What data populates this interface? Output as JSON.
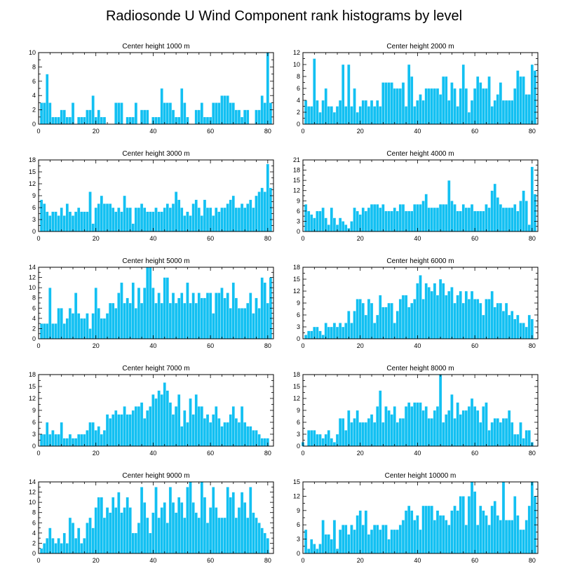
{
  "title": "Radiosonde U Wind Component rank histograms by level",
  "colors": {
    "bar": "#12c0f2",
    "bar_edge": "#ffffff",
    "axis": "#000000"
  },
  "chart_data": [
    {
      "type": "bar",
      "title": "Center height 1000 m",
      "xlim": [
        0,
        82
      ],
      "ylim": [
        0,
        10
      ],
      "yticks": [
        0,
        2,
        4,
        6,
        8,
        10
      ],
      "xticks": [
        0,
        20,
        40,
        60,
        80
      ],
      "values": [
        0,
        3,
        3,
        7,
        3,
        1,
        1,
        1,
        2,
        2,
        1,
        1,
        3,
        0,
        1,
        1,
        1,
        2,
        2,
        4,
        1,
        2,
        1,
        1,
        0,
        0,
        0,
        3,
        3,
        3,
        0,
        1,
        1,
        1,
        3,
        0,
        2,
        2,
        2,
        0,
        1,
        1,
        1,
        5,
        3,
        3,
        3,
        2,
        1,
        1,
        5,
        3,
        1,
        0,
        0,
        2,
        2,
        3,
        1,
        1,
        1,
        3,
        3,
        3,
        4,
        4,
        4,
        3,
        3,
        2,
        2,
        1,
        2,
        2,
        0,
        0,
        2,
        2,
        4,
        3,
        10,
        3
      ]
    },
    {
      "type": "bar",
      "title": "Center height 2000 m",
      "xlim": [
        0,
        82
      ],
      "ylim": [
        0,
        12
      ],
      "yticks": [
        0,
        2,
        4,
        6,
        8,
        10,
        12
      ],
      "xticks": [
        0,
        20,
        40,
        60,
        80
      ],
      "values": [
        0,
        4,
        3,
        3,
        11,
        4,
        2,
        4,
        6,
        3,
        3,
        2,
        3,
        4,
        10,
        3,
        10,
        3,
        6,
        2,
        3,
        4,
        4,
        3,
        4,
        3,
        4,
        3,
        7,
        7,
        7,
        7,
        6,
        6,
        6,
        7,
        3,
        10,
        8,
        3,
        4,
        5,
        4,
        6,
        6,
        6,
        6,
        6,
        5,
        8,
        8,
        4,
        7,
        6,
        3,
        6,
        10,
        6,
        2,
        4,
        6,
        8,
        7,
        6,
        6,
        8,
        3,
        4,
        5,
        7,
        4,
        4,
        4,
        4,
        6,
        9,
        8,
        8,
        5,
        5,
        10,
        9
      ]
    },
    {
      "type": "bar",
      "title": "Center height 3000 m",
      "xlim": [
        0,
        82
      ],
      "ylim": [
        0,
        18
      ],
      "yticks": [
        0,
        3,
        6,
        9,
        12,
        15,
        18
      ],
      "xticks": [
        0,
        20,
        40,
        60,
        80
      ],
      "values": [
        0,
        8,
        7,
        5,
        4,
        5,
        5,
        4,
        6,
        4,
        7,
        5,
        4,
        5,
        6,
        5,
        5,
        5,
        10,
        2,
        6,
        7,
        9,
        7,
        7,
        7,
        6,
        5,
        6,
        5,
        9,
        6,
        6,
        2,
        6,
        6,
        7,
        6,
        5,
        5,
        5,
        6,
        5,
        5,
        6,
        7,
        6,
        7,
        10,
        8,
        6,
        4,
        5,
        4,
        7,
        8,
        6,
        4,
        8,
        6,
        6,
        4,
        6,
        5,
        6,
        6,
        7,
        8,
        9,
        6,
        6,
        7,
        6,
        7,
        8,
        6,
        9,
        10,
        11,
        10,
        17,
        11
      ]
    },
    {
      "type": "bar",
      "title": "Center height 4000 m",
      "xlim": [
        0,
        82
      ],
      "ylim": [
        0,
        21
      ],
      "yticks": [
        0,
        3,
        6,
        9,
        12,
        15,
        18,
        21
      ],
      "xticks": [
        0,
        20,
        40,
        60,
        80
      ],
      "values": [
        0,
        8,
        6,
        5,
        4,
        6,
        6,
        7,
        4,
        2,
        7,
        4,
        2,
        4,
        3,
        2,
        1,
        3,
        7,
        6,
        5,
        7,
        6,
        7,
        8,
        8,
        8,
        7,
        8,
        6,
        6,
        6,
        7,
        6,
        8,
        8,
        6,
        6,
        6,
        8,
        8,
        8,
        9,
        11,
        7,
        7,
        7,
        7,
        8,
        8,
        8,
        15,
        9,
        8,
        6,
        6,
        8,
        7,
        7,
        8,
        6,
        6,
        6,
        6,
        8,
        7,
        12,
        14,
        10,
        8,
        7,
        7,
        7,
        7,
        8,
        6,
        9,
        12,
        9,
        2,
        19,
        11
      ]
    },
    {
      "type": "bar",
      "title": "Center height 5000 m",
      "xlim": [
        0,
        82
      ],
      "ylim": [
        0,
        14
      ],
      "yticks": [
        0,
        2,
        4,
        6,
        8,
        10,
        12,
        14
      ],
      "xticks": [
        0,
        20,
        40,
        60,
        80
      ],
      "values": [
        0,
        3,
        3,
        3,
        10,
        3,
        3,
        6,
        6,
        3,
        4,
        6,
        5,
        9,
        5,
        4,
        4,
        5,
        2,
        5,
        10,
        6,
        4,
        4,
        5,
        7,
        7,
        6,
        9,
        11,
        7,
        8,
        7,
        11,
        6,
        10,
        7,
        10,
        14,
        14,
        10,
        7,
        9,
        7,
        12,
        12,
        7,
        9,
        7,
        8,
        9,
        7,
        11,
        7,
        9,
        7,
        9,
        8,
        8,
        9,
        9,
        5,
        9,
        9,
        10,
        8,
        9,
        6,
        11,
        8,
        6,
        6,
        6,
        7,
        9,
        5,
        8,
        6,
        12,
        11,
        7,
        12
      ]
    },
    {
      "type": "bar",
      "title": "Center height 6000 m",
      "xlim": [
        0,
        82
      ],
      "ylim": [
        0,
        18
      ],
      "yticks": [
        0,
        3,
        6,
        9,
        12,
        15,
        18
      ],
      "xticks": [
        0,
        20,
        40,
        60,
        80
      ],
      "values": [
        0,
        1,
        2,
        2,
        3,
        3,
        2,
        1,
        4,
        3,
        3,
        4,
        3,
        4,
        3,
        4,
        7,
        4,
        7,
        10,
        10,
        9,
        6,
        10,
        9,
        4,
        6,
        11,
        8,
        8,
        9,
        9,
        4,
        7,
        10,
        11,
        11,
        8,
        9,
        10,
        14,
        16,
        10,
        14,
        13,
        12,
        14,
        11,
        15,
        14,
        11,
        12,
        13,
        9,
        11,
        12,
        9,
        12,
        10,
        12,
        10,
        10,
        9,
        6,
        10,
        10,
        12,
        8,
        9,
        9,
        7,
        9,
        6,
        7,
        5,
        6,
        4,
        4,
        3,
        6,
        5
      ]
    },
    {
      "type": "bar",
      "title": "Center height 7000 m",
      "xlim": [
        0,
        82
      ],
      "ylim": [
        0,
        18
      ],
      "yticks": [
        0,
        3,
        6,
        9,
        12,
        15,
        18
      ],
      "xticks": [
        0,
        20,
        40,
        60,
        80
      ],
      "values": [
        0,
        3,
        3,
        6,
        3,
        4,
        3,
        3,
        6,
        2,
        2,
        3,
        2,
        2,
        3,
        3,
        3,
        4,
        6,
        6,
        4,
        5,
        3,
        4,
        8,
        7,
        8,
        9,
        8,
        8,
        10,
        8,
        8,
        9,
        10,
        10,
        11,
        7,
        9,
        10,
        13,
        12,
        14,
        13,
        16,
        14,
        11,
        8,
        10,
        13,
        5,
        9,
        6,
        12,
        8,
        13,
        10,
        10,
        7,
        8,
        6,
        8,
        10,
        7,
        5,
        6,
        6,
        8,
        10,
        7,
        6,
        10,
        6,
        5,
        5,
        4,
        4,
        3,
        2,
        2,
        2
      ]
    },
    {
      "type": "bar",
      "title": "Center height 8000 m",
      "xlim": [
        0,
        82
      ],
      "ylim": [
        0,
        18
      ],
      "yticks": [
        0,
        3,
        6,
        9,
        12,
        15,
        18
      ],
      "xticks": [
        0,
        20,
        40,
        60,
        80
      ],
      "values": [
        1,
        0,
        4,
        4,
        4,
        3,
        3,
        2,
        3,
        4,
        2,
        1,
        3,
        7,
        7,
        4,
        9,
        6,
        7,
        9,
        6,
        6,
        6,
        7,
        8,
        6,
        10,
        14,
        6,
        10,
        9,
        8,
        10,
        6,
        7,
        7,
        10,
        11,
        10,
        11,
        11,
        11,
        9,
        10,
        7,
        7,
        9,
        10,
        18,
        6,
        8,
        9,
        13,
        7,
        11,
        8,
        9,
        9,
        10,
        12,
        10,
        9,
        6,
        10,
        11,
        4,
        6,
        7,
        7,
        6,
        7,
        7,
        9,
        6,
        3,
        3,
        6,
        2,
        4,
        4,
        1
      ]
    },
    {
      "type": "bar",
      "title": "Center height 9000 m",
      "xlim": [
        0,
        82
      ],
      "ylim": [
        0,
        14
      ],
      "yticks": [
        0,
        2,
        4,
        6,
        8,
        10,
        12,
        14
      ],
      "xticks": [
        0,
        20,
        40,
        60,
        80
      ],
      "values": [
        0,
        1,
        2,
        3,
        5,
        3,
        2,
        3,
        2,
        4,
        2,
        7,
        6,
        3,
        5,
        2,
        3,
        6,
        7,
        5,
        9,
        11,
        11,
        7,
        9,
        8,
        11,
        9,
        12,
        8,
        9,
        11,
        9,
        4,
        4,
        6,
        13,
        10,
        7,
        4,
        8,
        13,
        7,
        9,
        10,
        6,
        13,
        10,
        8,
        11,
        10,
        7,
        13,
        14,
        10,
        8,
        7,
        14,
        11,
        6,
        9,
        13,
        9,
        7,
        7,
        7,
        13,
        11,
        12,
        7,
        9,
        12,
        10,
        7,
        13,
        8,
        7,
        6,
        5,
        4,
        3
      ]
    },
    {
      "type": "bar",
      "title": "Center height 10000 m",
      "xlim": [
        0,
        82
      ],
      "ylim": [
        0,
        15
      ],
      "yticks": [
        0,
        3,
        6,
        9,
        12,
        15
      ],
      "xticks": [
        0,
        20,
        40,
        60,
        80
      ],
      "values": [
        0,
        5,
        1,
        3,
        2,
        1,
        2,
        7,
        4,
        4,
        3,
        7,
        1,
        5,
        6,
        6,
        4,
        6,
        5,
        8,
        9,
        6,
        9,
        4,
        5,
        6,
        6,
        5,
        6,
        6,
        3,
        5,
        5,
        5,
        6,
        7,
        9,
        10,
        9,
        7,
        8,
        5,
        10,
        10,
        10,
        10,
        7,
        9,
        8,
        8,
        7,
        6,
        9,
        10,
        9,
        12,
        12,
        6,
        12,
        15,
        13,
        6,
        10,
        9,
        8,
        6,
        10,
        11,
        8,
        7,
        15,
        7,
        7,
        7,
        12,
        8,
        5,
        5,
        7,
        10,
        15,
        12
      ]
    }
  ]
}
